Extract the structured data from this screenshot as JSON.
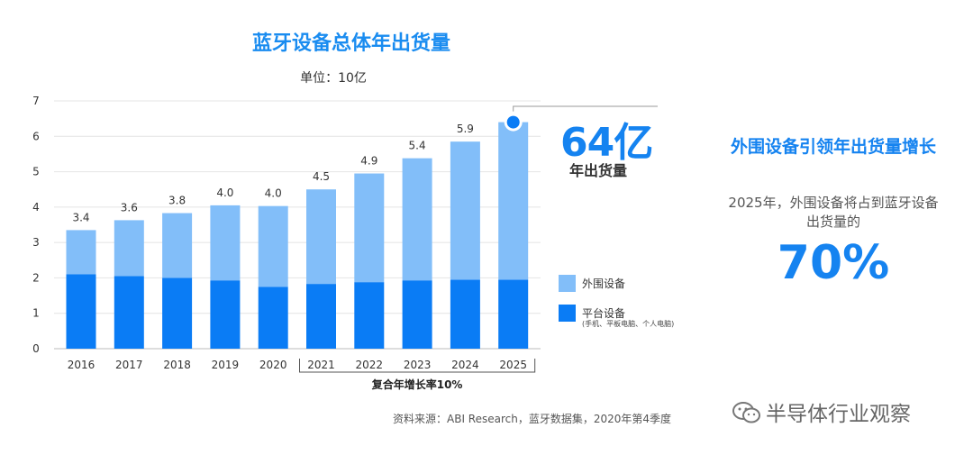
{
  "chart_data": {
    "type": "bar",
    "stacked": true,
    "title": "蓝牙设备总体年出货量",
    "subtitle": "单位：10亿",
    "categories": [
      "2016",
      "2017",
      "2018",
      "2019",
      "2020",
      "2021",
      "2022",
      "2023",
      "2024",
      "2025"
    ],
    "series": [
      {
        "name": "平台设备",
        "color": "#0a7cf5",
        "values": [
          2.1,
          2.05,
          2.0,
          1.93,
          1.75,
          1.83,
          1.88,
          1.93,
          1.95,
          1.95
        ]
      },
      {
        "name": "外围设备",
        "color": "#82bef9",
        "values": [
          1.25,
          1.58,
          1.83,
          2.12,
          2.28,
          2.67,
          3.07,
          3.45,
          3.9,
          4.45
        ]
      }
    ],
    "total_labels": [
      "3.4",
      "3.6",
      "3.8",
      "4.0",
      "4.0",
      "4.5",
      "4.9",
      "5.4",
      "5.9",
      ""
    ],
    "ylim": [
      0,
      7
    ],
    "yticks": [
      "0",
      "1",
      "2",
      "3",
      "4",
      "5",
      "6",
      "7"
    ],
    "grid": true,
    "legend_position": "right",
    "bracket_label": "复合年增长率10%",
    "highlight": {
      "category": "2025",
      "value": "64亿",
      "caption": "年出货量"
    }
  },
  "legend": {
    "peripheral": "外围设备",
    "platform": "平台设备",
    "platform_note": "(手机、平板电脑、个人电脑)"
  },
  "side": {
    "headline": "外围设备引领年出货量增长",
    "text": "2025年，外围设备将占到蓝牙设备出货量的",
    "percent": "70%"
  },
  "source": "资料来源：ABI Research，蓝牙数据集，2020年第4季度",
  "watermark": "半导体行业观察"
}
